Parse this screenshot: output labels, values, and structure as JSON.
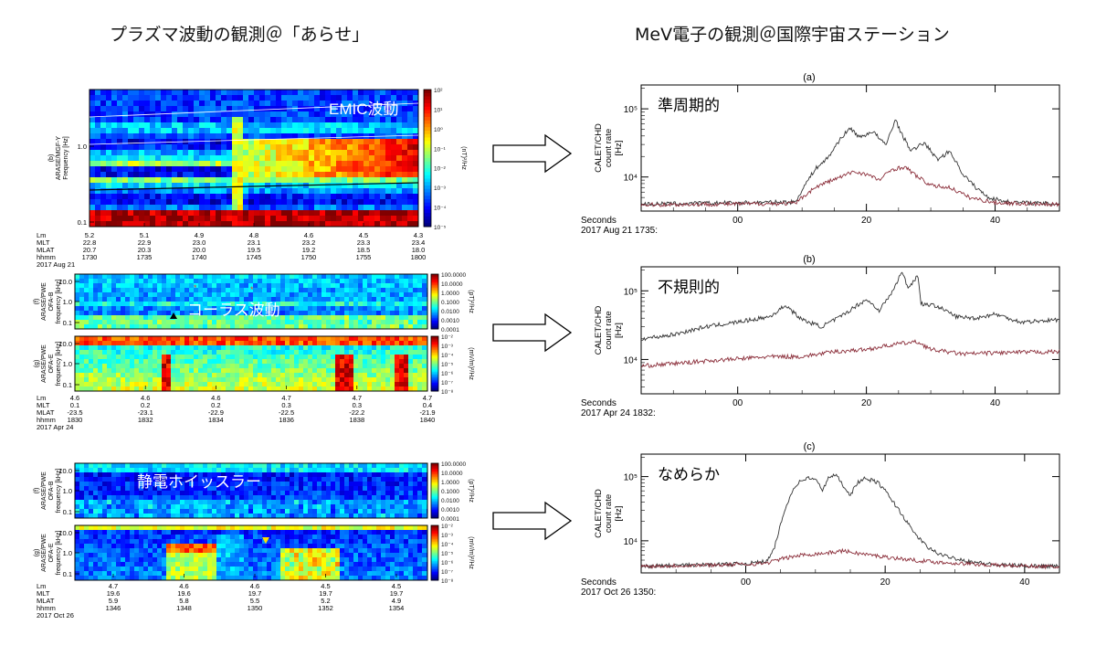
{
  "headings": {
    "left": "プラズマ波動の観測＠「あらせ」",
    "right": "MeV電子の観測＠国際宇宙ステーション"
  },
  "spectrograms": [
    {
      "label": "EMIC波動",
      "panels": [
        {
          "tag": "(b)",
          "ylabel": [
            "ARASE/MGF-Y",
            "Frequency [Hz]"
          ],
          "ticks": [
            "1.0",
            "0.1"
          ],
          "cbar_ticks": [
            "10²",
            "10¹",
            "10⁰",
            "10⁻¹",
            "10⁻²",
            "10⁻³",
            "10⁻⁴",
            "10⁻⁵"
          ],
          "cbar_unit": "(nT)²/Hz"
        }
      ],
      "rows": [
        "Lm",
        "MLT",
        "MLAT",
        "hhmm"
      ],
      "cols": [
        [
          "5.2",
          "22.8",
          "20.7",
          "1730"
        ],
        [
          "5.1",
          "22.9",
          "20.3",
          "1735"
        ],
        [
          "4.9",
          "23.0",
          "20.0",
          "1740"
        ],
        [
          "4.8",
          "23.1",
          "19.5",
          "1745"
        ],
        [
          "4.6",
          "23.2",
          "19.2",
          "1750"
        ],
        [
          "4.5",
          "23.3",
          "18.5",
          "1755"
        ],
        [
          "4.3",
          "23.4",
          "18.0",
          "1800"
        ]
      ],
      "date": "2017 Aug 21"
    },
    {
      "label": "コーラス波動",
      "panels": [
        {
          "tag": "(f)",
          "ylabel": [
            "ARASE/PWE",
            "OFA-B",
            "frequency [kHz]"
          ],
          "ticks": [
            "10.0",
            "1.0",
            "0.1"
          ],
          "cbar_ticks": [
            "100.0000",
            "10.0000",
            "1.0000",
            "0.1000",
            "0.0100",
            "0.0010",
            "0.0001"
          ],
          "cbar_unit": "(pT)²/Hz"
        },
        {
          "tag": "(g)",
          "ylabel": [
            "ARASE/PWE",
            "OFA-E",
            "frequency [kHz]"
          ],
          "ticks": [
            "10.0",
            "1.0",
            "0.1"
          ],
          "cbar_ticks": [
            "10⁻²",
            "10⁻³",
            "10⁻⁴",
            "10⁻⁵",
            "10⁻⁶",
            "10⁻⁷",
            "10⁻⁸"
          ],
          "cbar_unit": "(mV/m)²/Hz"
        }
      ],
      "rows": [
        "Lm",
        "MLT",
        "MLAT",
        "hhmm"
      ],
      "cols": [
        [
          "4.6",
          "0.1",
          "-23.5",
          "1830"
        ],
        [
          "4.6",
          "0.2",
          "-23.1",
          "1832"
        ],
        [
          "4.6",
          "0.2",
          "-22.9",
          "1834"
        ],
        [
          "4.7",
          "0.3",
          "-22.5",
          "1836"
        ],
        [
          "4.7",
          "0.3",
          "-22.2",
          "1838"
        ],
        [
          "4.7",
          "0.4",
          "-21.9",
          "1840"
        ]
      ],
      "date": "2017 Apr 24"
    },
    {
      "label": "静電ホイッスラー",
      "panels": [
        {
          "tag": "(f)",
          "ylabel": [
            "ARASE/PWE",
            "OFA-B",
            "frequency [kHz]"
          ],
          "ticks": [
            "10.0",
            "1.0",
            "0.1"
          ],
          "cbar_ticks": [
            "100.0000",
            "10.0000",
            "1.0000",
            "0.1000",
            "0.0100",
            "0.0010",
            "0.0001"
          ],
          "cbar_unit": "(pT)²/Hz"
        },
        {
          "tag": "(g)",
          "ylabel": [
            "ARASE/PWE",
            "OFA-E",
            "frequency [kHz]"
          ],
          "ticks": [
            "10.0",
            "1.0",
            "0.1"
          ],
          "cbar_ticks": [
            "10⁻²",
            "10⁻³",
            "10⁻⁴",
            "10⁻⁵",
            "10⁻⁶",
            "10⁻⁷",
            "10⁻⁸"
          ],
          "cbar_unit": "(mV/m)²/Hz"
        }
      ],
      "rows": [
        "Lm",
        "MLT",
        "MLAT",
        "hhmm"
      ],
      "cols": [
        [
          "4.7",
          "19.6",
          "5.9",
          "1346"
        ],
        [
          "4.6",
          "19.6",
          "5.8",
          "1348"
        ],
        [
          "4.6",
          "19.7",
          "5.5",
          "1350"
        ],
        [
          "4.5",
          "19.7",
          "5.2",
          "1352"
        ],
        [
          "4.5",
          "19.7",
          "4.9",
          "1354"
        ]
      ],
      "date": "2017 Oct 26"
    }
  ],
  "chart_data": [
    {
      "type": "line",
      "title": "(a)",
      "annotation": "準周期的",
      "ylabel": [
        "CALET/CHD",
        "count rate",
        "[Hz]"
      ],
      "xlabel": "Seconds",
      "xlabel_sub": "2017 Aug 21 1735:",
      "xticks": [
        "00",
        "20",
        "40"
      ],
      "yticks": [
        "10⁵",
        "10⁴"
      ],
      "xlim": [
        -15,
        50
      ],
      "ylim_log10": [
        3.5,
        5.35
      ],
      "series": [
        {
          "color": "#333333",
          "x": [
            -15,
            9,
            10,
            12,
            14,
            16,
            17.5,
            19,
            21,
            23,
            24.5,
            25.5,
            27,
            29,
            31,
            33,
            35,
            37,
            39,
            42,
            50
          ],
          "y": [
            4000,
            4300,
            6500,
            13000,
            19000,
            37000,
            52000,
            38000,
            47000,
            29000,
            70000,
            42000,
            24000,
            32000,
            18000,
            24000,
            11000,
            7000,
            5000,
            4300,
            4000
          ]
        },
        {
          "color": "#8b2e3a",
          "x": [
            -15,
            9,
            10,
            12,
            14,
            16,
            18,
            20,
            22,
            24,
            26,
            28,
            30,
            33,
            36,
            40,
            50
          ],
          "y": [
            3900,
            4100,
            5000,
            7000,
            8500,
            10000,
            12000,
            11000,
            9000,
            13000,
            14000,
            10000,
            7500,
            7000,
            5000,
            4200,
            3900
          ]
        }
      ]
    },
    {
      "type": "line",
      "title": "(b)",
      "annotation": "不規則的",
      "ylabel": [
        "CALET/CHD",
        "count rate",
        "[Hz]"
      ],
      "xlabel": "Seconds",
      "xlabel_sub": "2017 Apr 24 1832:",
      "xticks": [
        "00",
        "20",
        "40"
      ],
      "yticks": [
        "10⁵",
        "10⁴"
      ],
      "xlim": [
        -15,
        50
      ],
      "ylim_log10": [
        3.5,
        5.35
      ],
      "series": [
        {
          "color": "#333333",
          "x": [
            -15,
            -10,
            -5,
            0,
            5,
            7.5,
            8.5,
            10,
            13,
            16,
            18,
            20,
            22,
            24,
            25.5,
            26.5,
            28,
            28.5,
            31,
            34,
            37,
            40,
            44,
            50
          ],
          "y": [
            20000,
            23000,
            30000,
            35000,
            42000,
            62000,
            50000,
            38000,
            30000,
            42000,
            57000,
            75000,
            52000,
            95000,
            190000,
            110000,
            170000,
            65000,
            60000,
            42000,
            40000,
            46000,
            35000,
            38000
          ]
        },
        {
          "color": "#8b2e3a",
          "x": [
            -15,
            -5,
            5,
            10,
            15,
            20,
            25,
            28,
            30,
            35,
            40,
            50
          ],
          "y": [
            8000,
            9500,
            11000,
            11000,
            13000,
            14000,
            17000,
            18000,
            14000,
            12000,
            12500,
            13000
          ]
        }
      ]
    },
    {
      "type": "line",
      "title": "(c)",
      "annotation": "なめらか",
      "ylabel": [
        "CALET/CHD",
        "count rate",
        "[Hz]"
      ],
      "xlabel": "Seconds",
      "xlabel_sub": "2017 Oct 26 1350:",
      "xticks": [
        "00",
        "20",
        "40"
      ],
      "yticks": [
        "10⁵",
        "10⁴"
      ],
      "xlim": [
        -15,
        45
      ],
      "ylim_log10": [
        3.5,
        5.35
      ],
      "series": [
        {
          "color": "#333333",
          "x": [
            -15,
            0,
            3,
            4,
            5,
            6,
            7,
            8,
            9,
            10,
            11,
            12,
            13,
            14,
            15,
            16,
            17,
            18,
            19,
            20,
            22,
            24,
            26,
            28,
            32,
            36,
            45
          ],
          "y": [
            4000,
            4400,
            4800,
            7000,
            18000,
            40000,
            70000,
            88000,
            95000,
            90000,
            62000,
            100000,
            105000,
            72000,
            52000,
            80000,
            92000,
            88000,
            80000,
            60000,
            30000,
            14000,
            8000,
            6000,
            4800,
            4200,
            4000
          ]
        },
        {
          "color": "#8b2e3a",
          "x": [
            -15,
            0,
            3,
            5,
            8,
            12,
            14,
            16,
            20,
            24,
            28,
            35,
            45
          ],
          "y": [
            4000,
            4300,
            4500,
            5200,
            6000,
            6500,
            7000,
            6400,
            5600,
            5000,
            4600,
            4200,
            3900
          ]
        }
      ]
    }
  ]
}
